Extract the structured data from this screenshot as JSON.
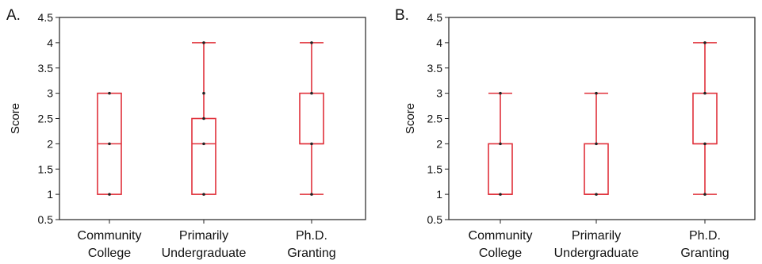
{
  "chart_data": [
    {
      "type": "box",
      "panel_label": "A.",
      "ylabel": "Score",
      "ylim": [
        0.5,
        4.5
      ],
      "yticks": [
        "0.5",
        "1",
        "1.5",
        "2",
        "2.5",
        "3",
        "3.5",
        "4",
        "4.5"
      ],
      "categories": [
        [
          "Community",
          "College"
        ],
        [
          "Primarily",
          "Undergraduate"
        ],
        [
          "Ph.D.",
          "Granting"
        ]
      ],
      "boxes": [
        {
          "min": 1,
          "q1": 1,
          "median": 2,
          "q3": 3,
          "max": 3
        },
        {
          "min": 1,
          "q1": 1,
          "median": 2,
          "q3": 2.5,
          "max": 4,
          "extra_points": [
            3
          ]
        },
        {
          "min": 1,
          "q1": 2,
          "median": 2,
          "q3": 3,
          "max": 4
        }
      ],
      "color": "#e0303a"
    },
    {
      "type": "box",
      "panel_label": "B.",
      "ylabel": "Score",
      "ylim": [
        0.5,
        4.5
      ],
      "yticks": [
        "0.5",
        "1",
        "1.5",
        "2",
        "2.5",
        "3",
        "3.5",
        "4",
        "4.5"
      ],
      "categories": [
        [
          "Community",
          "College"
        ],
        [
          "Primarily",
          "Undergraduate"
        ],
        [
          "Ph.D.",
          "Granting"
        ]
      ],
      "boxes": [
        {
          "min": 1,
          "q1": 1,
          "median": 1,
          "q3": 2,
          "max": 3
        },
        {
          "min": 1,
          "q1": 1,
          "median": 1,
          "q3": 2,
          "max": 3
        },
        {
          "min": 1,
          "q1": 2,
          "median": 2,
          "q3": 3,
          "max": 4
        }
      ],
      "color": "#e0303a"
    }
  ]
}
